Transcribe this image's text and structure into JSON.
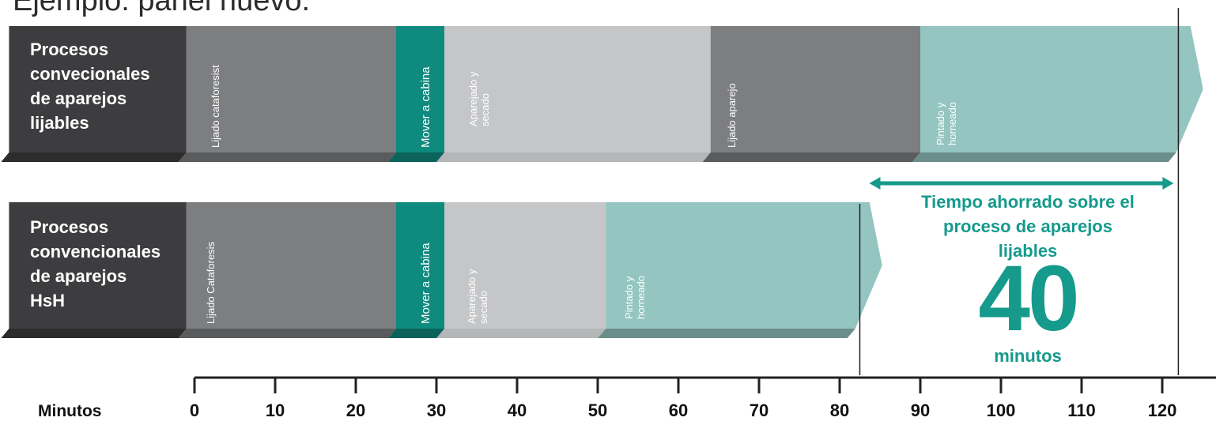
{
  "title": "Ejemplo: panel nuevo.",
  "colors": {
    "label_box": "#3d3d3f",
    "dark_gray": "#7d7e80",
    "teal_dark": "#0f8a7e",
    "light_gray": "#c5c6c8",
    "light_teal": "#94c5c0",
    "accent": "#159a8c",
    "axis": "#222222"
  },
  "rows": [
    {
      "label_lines": [
        "Procesos",
        "convecionales",
        "de aparejos",
        "lijables"
      ],
      "segments": [
        {
          "start": -23,
          "end": -1,
          "color": "label_box",
          "label_lines": []
        },
        {
          "start": -1,
          "end": 25,
          "color": "dark_gray",
          "label_lines": [
            "Lijado cataforesist"
          ]
        },
        {
          "start": 25,
          "end": 31,
          "color": "teal_dark",
          "label_lines": [
            "Mover a cabina"
          ],
          "big": true
        },
        {
          "start": 31,
          "end": 64,
          "color": "light_gray",
          "label_lines": [
            "Aparejado y",
            "secado"
          ]
        },
        {
          "start": 64,
          "end": 90,
          "color": "dark_gray",
          "label_lines": [
            "Lijado aparejo"
          ]
        },
        {
          "start": 90,
          "end": 123.5,
          "color": "light_teal",
          "label_lines": [
            "Pintado y",
            "horneado"
          ],
          "arrow": true
        }
      ]
    },
    {
      "label_lines": [
        "Procesos",
        "convencionales",
        "de aparejos",
        "HsH"
      ],
      "segments": [
        {
          "start": -23,
          "end": -1,
          "color": "label_box",
          "label_lines": []
        },
        {
          "start": -1,
          "end": 25,
          "color": "dark_gray",
          "label_lines": [
            "Lijado Cataforesis"
          ]
        },
        {
          "start": 25,
          "end": 31,
          "color": "teal_dark",
          "label_lines": [
            "Mover a cabina"
          ],
          "big": true
        },
        {
          "start": 31,
          "end": 51,
          "color": "light_gray",
          "label_lines": [
            "Aparejado y",
            "secado"
          ]
        },
        {
          "start": 51,
          "end": 83.7,
          "color": "light_teal",
          "label_lines": [
            "Pintado y",
            "horneado"
          ],
          "arrow": true
        }
      ]
    }
  ],
  "savings": {
    "caption_lines": [
      "Tiempo ahorrado sobre el",
      "proceso de aparejos",
      "lijables"
    ],
    "value": "40",
    "unit": "minutos",
    "from": 82.5,
    "to": 122
  },
  "axis": {
    "title": "Minutos",
    "min": 0,
    "max": 120,
    "ticks": [
      "0",
      "10",
      "20",
      "30",
      "40",
      "50",
      "60",
      "70",
      "80",
      "90",
      "100",
      "110",
      "120"
    ]
  }
}
